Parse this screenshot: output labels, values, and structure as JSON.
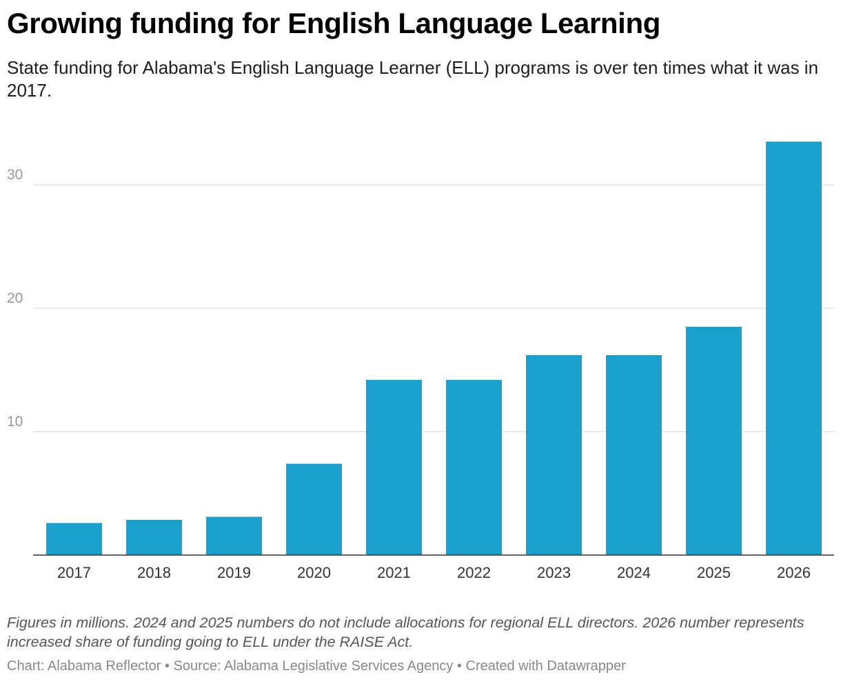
{
  "header": {
    "title": "Growing funding for English Language Learning",
    "subtitle": "State funding for Alabama's English Language Learner (ELL) programs is over ten times what it was in 2017."
  },
  "colors": {
    "bar": "#1aa0cc",
    "grid": "#dddddd",
    "baseline": "#333333",
    "tick_label": "#999999",
    "category_label": "#333333"
  },
  "chart_data": {
    "type": "bar",
    "title": "Growing funding for English Language Learning",
    "xlabel": "",
    "ylabel": "",
    "categories": [
      "2017",
      "2018",
      "2019",
      "2020",
      "2021",
      "2022",
      "2023",
      "2024",
      "2025",
      "2026"
    ],
    "values": [
      2.6,
      2.85,
      3.1,
      7.4,
      14.2,
      14.2,
      16.2,
      16.2,
      18.5,
      33.5
    ],
    "ylim": [
      0,
      34
    ],
    "yticks": [
      10,
      20,
      30
    ],
    "grid": true,
    "legend": "none"
  },
  "footer": {
    "notes": "Figures in millions. 2024 and 2025 numbers do not include allocations for regional ELL directors. 2026 number represents increased share of funding going to ELL under the RAISE Act.",
    "chart_credit": "Chart: Alabama Reflector",
    "source": "Source: Alabama Legislative Services Agency",
    "created_with": "Created with Datawrapper",
    "separator": "•"
  }
}
